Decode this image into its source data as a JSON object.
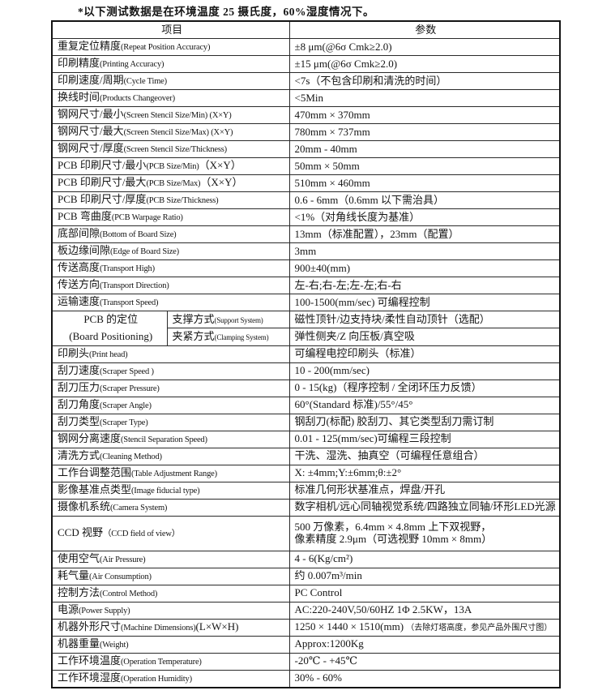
{
  "page": {
    "note": "*以下测试数据是在环境温度 25 摄氏度，60%湿度情况下。"
  },
  "table": {
    "header": {
      "item": "项目",
      "param": "参数"
    },
    "rows": [
      {
        "zh": "重复定位精度",
        "en": "(Repeat Position Accuracy)",
        "value": "±8 μm(@6σ Cmk≥2.0)"
      },
      {
        "zh": "印刷精度",
        "en": "(Printing Accuracy)",
        "value": "±15 μm(@6σ Cmk≥2.0)"
      },
      {
        "zh": "印刷速度/周期",
        "en": "(Cycle Time)",
        "value": "<7s（不包含印刷和清洗的时间）"
      },
      {
        "zh": "换线时间",
        "en": "(Products Changeover)",
        "value": "<5Min"
      },
      {
        "zh": "钢网尺寸/最小",
        "en": "(Screen Stencil Size/Min) (X×Y)",
        "value": "470mm × 370mm"
      },
      {
        "zh": "钢网尺寸/最大",
        "en": "(Screen Stencil Size/Max) (X×Y)",
        "value": "780mm × 737mm"
      },
      {
        "zh": "钢网尺寸/厚度",
        "en": "(Screen Stencil Size/Thickness)",
        "value": "20mm - 40mm"
      },
      {
        "zh": "PCB 印刷尺寸/最小",
        "en": "(PCB Size/Min)",
        "suffix": "（X×Y）",
        "value": "50mm × 50mm"
      },
      {
        "zh": "PCB 印刷尺寸/最大",
        "en": "(PCB Size/Max)",
        "suffix": "（X×Y）",
        "value": "510mm × 460mm"
      },
      {
        "zh": "PCB 印刷尺寸/厚度",
        "en": "(PCB Size/Thickness)",
        "value": "0.6 - 6mm（0.6mm 以下需治具）"
      },
      {
        "zh": "PCB 弯曲度",
        "en": "(PCB Warpage Ratio)",
        "value": "<1%（对角线长度为基准）"
      },
      {
        "zh": "底部间隙",
        "en": "(Bottom of Board Size)",
        "value": "13mm（标准配置），23mm（配置）"
      },
      {
        "zh": "板边缘间隙",
        "en": "(Edge of Board Size)",
        "value": "3mm"
      },
      {
        "zh": "传送高度",
        "en": "(Transport High)",
        "value": "900±40(mm)"
      },
      {
        "zh": "传送方向",
        "en": "(Transport Direction)",
        "value": "左-右;右-左;左-左;右-右"
      },
      {
        "zh": "运输速度",
        "en": "(Transport Speed)",
        "value": "100-1500(mm/sec) 可编程控制"
      },
      {
        "group": {
          "line1": "PCB 的定位",
          "line2": "(Board Positioning)"
        },
        "subs": [
          {
            "zh": "支撑方式",
            "en": "(Support System)",
            "value": "磁性顶针/边支持块/柔性自动顶针（选配）"
          },
          {
            "zh": "夹紧方式",
            "en": "(Clamping System)",
            "value": "弹性侧夹/Z 向压板/真空吸"
          }
        ]
      },
      {
        "zh": "印刷头",
        "en": "(Print head)",
        "value": "可编程电控印刷头（标准）"
      },
      {
        "zh": "刮刀速度",
        "en": "(Scraper Speed )",
        "value": "10 - 200(mm/sec)"
      },
      {
        "zh": "刮刀压力",
        "en": "(Scraper Pressure)",
        "value": "0 - 15(kg)（程序控制 / 全闭环压力反馈）"
      },
      {
        "zh": "刮刀角度",
        "en": "(Scraper Angle)",
        "value": "60°(Standard 标准)/55°/45°"
      },
      {
        "zh": "刮刀类型",
        "en": "(Scraper Type)",
        "value": "钢刮刀(标配) 胶刮刀、其它类型刮刀需订制"
      },
      {
        "zh": "钢网分离速度",
        "en": "(Stencil Separation Speed)",
        "value": "0.01 - 125(mm/sec)可编程三段控制"
      },
      {
        "zh": "清洗方式",
        "en": "(Cleaning Method)",
        "value": "干洗、湿洗、抽真空（可编程任意组合）"
      },
      {
        "zh": "工作台调整范围",
        "en": "(Table Adjustment Range)",
        "value": "X: ±4mm;Y:±6mm;θ:±2°"
      },
      {
        "zh": "影像基准点类型",
        "en": "(Image fiducial type)",
        "value": "标准几何形状基准点，焊盘/开孔"
      },
      {
        "zh": "摄像机系统",
        "en": "(Camera System)",
        "value": "数字相机/远心同轴视觉系统/四路独立同轴/环形LED光源"
      },
      {
        "zh": "CCD 视野",
        "en": "（CCD field of view）",
        "tall": true,
        "value": "500 万像素，6.4mm × 4.8mm 上下双视野，\n像素精度 2.9μm（可选视野 10mm × 8mm）"
      },
      {
        "zh": "使用空气",
        "en": "(Air Pressure)",
        "value": "4 - 6(Kg/cm²)"
      },
      {
        "zh": "耗气量",
        "en": "(Air Consumption)",
        "value": "约 0.007m³/min"
      },
      {
        "zh": "控制方法",
        "en": "(Control Method)",
        "value": "PC Control"
      },
      {
        "zh": "电源",
        "en": "(Power Supply)",
        "value": "AC:220-240V,50/60HZ 1Φ 2.5KW，13A"
      },
      {
        "zh": "机器外形尺寸",
        "en": "(Machine Dimensions)",
        "suffix": "(L×W×H)",
        "value": "1250 × 1440 × 1510(mm) ",
        "value_small": "（去除灯塔高度，参见产品外围尺寸图）"
      },
      {
        "zh": "机器重量",
        "en": "(Weight)",
        "value": "Approx:1200Kg"
      },
      {
        "zh": "工作环境温度",
        "en": "(Operation Temperature)",
        "value": "-20℃ - +45℃"
      },
      {
        "zh": "工作环境湿度",
        "en": "(Operation Humidity)",
        "value": "30% - 60%"
      }
    ]
  }
}
